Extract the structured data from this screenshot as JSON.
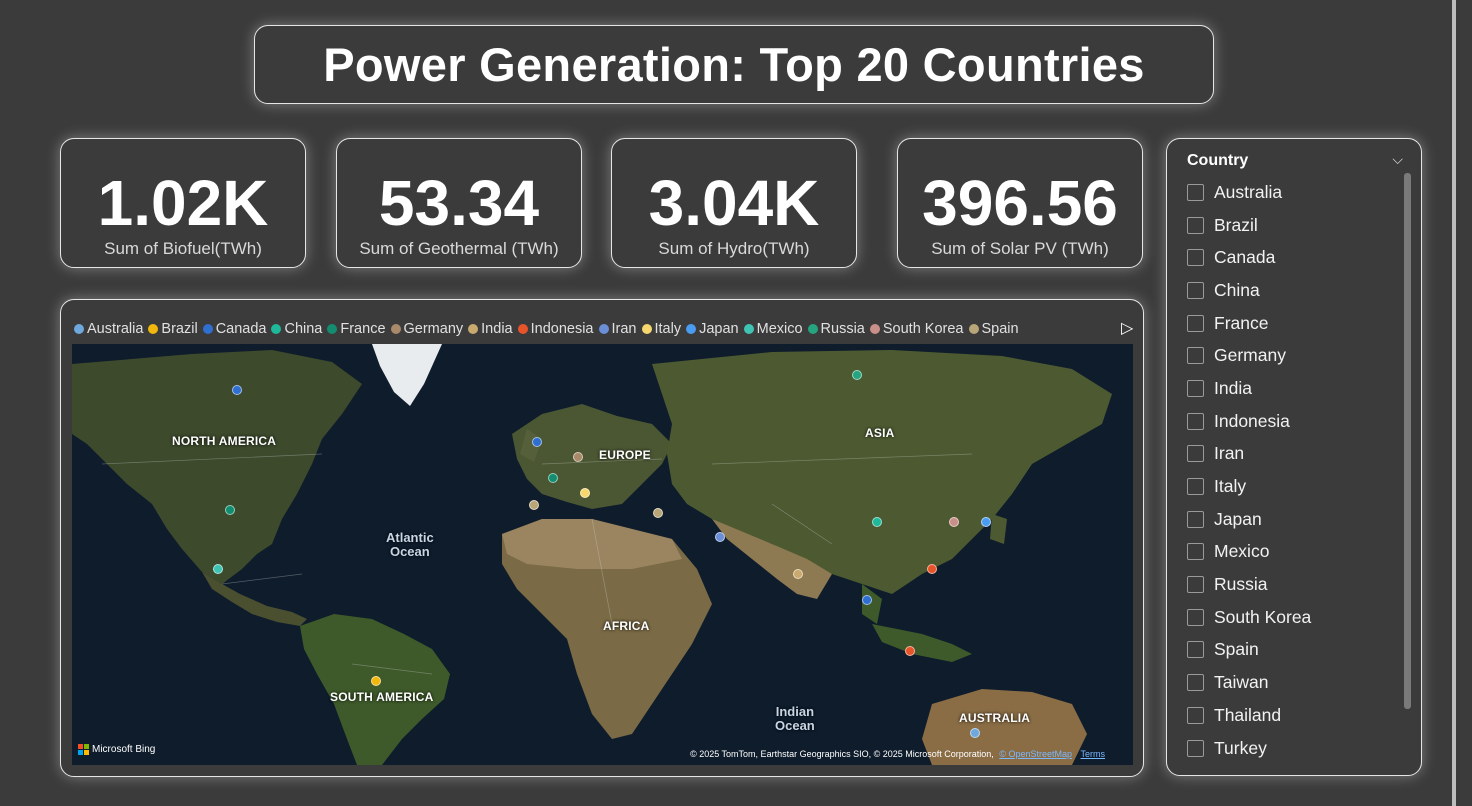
{
  "title": "Power Generation: Top 20 Countries",
  "kpis": [
    {
      "value": "1.02K",
      "label": "Sum of Biofuel(TWh)"
    },
    {
      "value": "53.34",
      "label": "Sum of Geothermal (TWh)"
    },
    {
      "value": "3.04K",
      "label": "Sum of Hydro(TWh)"
    },
    {
      "value": "396.56",
      "label": "Sum of Solar PV (TWh)"
    }
  ],
  "legend": {
    "items": [
      {
        "name": "Australia",
        "color": "#6fa8dc"
      },
      {
        "name": "Brazil",
        "color": "#f1b70e"
      },
      {
        "name": "Canada",
        "color": "#2f6fcf"
      },
      {
        "name": "China",
        "color": "#1fb89a"
      },
      {
        "name": "France",
        "color": "#138d6f"
      },
      {
        "name": "Germany",
        "color": "#a88a6a"
      },
      {
        "name": "India",
        "color": "#c9aa6e"
      },
      {
        "name": "Indonesia",
        "color": "#e8542a"
      },
      {
        "name": "Iran",
        "color": "#6b8fd6"
      },
      {
        "name": "Italy",
        "color": "#f5d76e"
      },
      {
        "name": "Japan",
        "color": "#4a9cf0"
      },
      {
        "name": "Mexico",
        "color": "#3fc4b4"
      },
      {
        "name": "Russia",
        "color": "#25a47f"
      },
      {
        "name": "South Korea",
        "color": "#c9908a"
      },
      {
        "name": "Spain",
        "color": "#b8a678"
      }
    ],
    "next_icon": "play-right-icon"
  },
  "map": {
    "continents": {
      "north_america": "NORTH AMERICA",
      "south_america": "SOUTH AMERICA",
      "europe": "EUROPE",
      "africa": "AFRICA",
      "asia": "ASIA",
      "australia": "AUSTRALIA"
    },
    "oceans": {
      "atlantic_1": "Atlantic",
      "atlantic_2": "Ocean",
      "indian_1": "Indian",
      "indian_2": "Ocean"
    },
    "brand": "Microsoft Bing",
    "attribution": "© 2025 TomTom, Earthstar Geographics SIO, © 2025 Microsoft Corporation,",
    "attribution_link": "© OpenStreetMap",
    "terms": "Terms"
  },
  "slicer": {
    "header": "Country",
    "items": [
      "Australia",
      "Brazil",
      "Canada",
      "China",
      "France",
      "Germany",
      "India",
      "Indonesia",
      "Iran",
      "Italy",
      "Japan",
      "Mexico",
      "Russia",
      "South Korea",
      "Spain",
      "Taiwan",
      "Thailand",
      "Turkey"
    ]
  }
}
